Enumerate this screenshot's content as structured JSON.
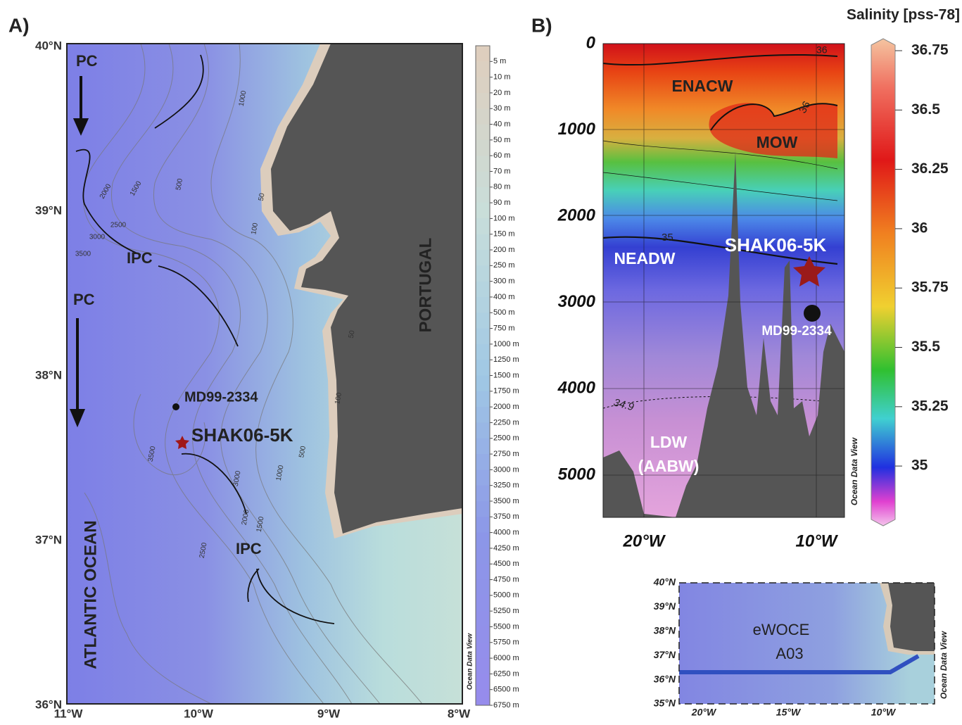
{
  "panel_a": {
    "label": "A)",
    "lat_labels": [
      "40°N",
      "39°N",
      "38°N",
      "37°N",
      "36°N"
    ],
    "lon_labels": [
      "11°W",
      "10°W",
      "9°W",
      "8°W"
    ],
    "annotations": {
      "pc_north": "PC",
      "pc_south": "PC",
      "ipc_north": "IPC",
      "ipc_south": "IPC",
      "ocean": "ATLANTIC OCEAN",
      "country": "PORTUGAL",
      "core_md": "MD99-2334",
      "core_shak": "SHAK06-5K"
    },
    "contour_labels": [
      "1000",
      "2000",
      "1500",
      "500",
      "2500",
      "3000",
      "3500",
      "50",
      "100",
      "50",
      "100",
      "3500",
      "3000",
      "2000",
      "1500",
      "1000",
      "500",
      "2500"
    ],
    "depth_legend": [
      "5 m",
      "10 m",
      "20 m",
      "30 m",
      "40 m",
      "50 m",
      "60 m",
      "70 m",
      "80 m",
      "90 m",
      "100 m",
      "150 m",
      "200 m",
      "250 m",
      "300 m",
      "400 m",
      "500 m",
      "750 m",
      "1000 m",
      "1250 m",
      "1500 m",
      "1750 m",
      "2000 m",
      "2250 m",
      "2500 m",
      "2750 m",
      "3000 m",
      "3250 m",
      "3500 m",
      "3750 m",
      "4000 m",
      "4250 m",
      "4500 m",
      "4750 m",
      "5000 m",
      "5250 m",
      "5500 m",
      "5750 m",
      "6000 m",
      "6250 m",
      "6500 m",
      "6750 m"
    ],
    "credit": "Ocean Data View"
  },
  "panel_b": {
    "label": "B)",
    "depth_labels": [
      "0",
      "1000",
      "2000",
      "3000",
      "4000",
      "5000"
    ],
    "lon_labels": [
      "20°W",
      "10°W"
    ],
    "water_masses": {
      "enacw": "ENACW",
      "mow": "MOW",
      "neadw": "NEADW",
      "ldw": "LDW",
      "aabw": "(AABW)"
    },
    "cores": {
      "shak": "SHAK06-5K",
      "md": "MD99-2334"
    },
    "contour_labels": [
      "36",
      "36",
      "35",
      "34.9"
    ],
    "credit": "Ocean Data View",
    "colorbar": {
      "title": "Salinity [pss-78]",
      "ticks": [
        "36.75",
        "36.5",
        "36.25",
        "36",
        "35.75",
        "35.5",
        "35.25",
        "35"
      ]
    },
    "inset": {
      "lat_labels": [
        "40°N",
        "39°N",
        "38°N",
        "37°N",
        "36°N",
        "35°N"
      ],
      "lon_labels": [
        "20°W",
        "15°W",
        "10°W"
      ],
      "section_name": "eWOCE",
      "section_id": "A03",
      "credit": "Ocean Data View"
    }
  }
}
